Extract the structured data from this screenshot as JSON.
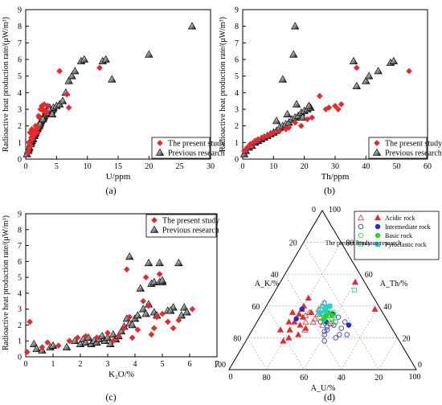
{
  "figure_labels": [
    "(a)",
    "(b)",
    "(c)",
    "(d)"
  ],
  "colors": {
    "present": "#e8282b",
    "previous": "#000000",
    "acidic": "#e8282b",
    "intermediate": "#1f2ad6",
    "basic": "#2bd12b",
    "pyroclastic": "#24cfd6"
  },
  "chart_data": [
    {
      "type": "scatter",
      "panel": "(a)",
      "xlabel": "U/ppm",
      "ylabel": "Radioactive heat production rate/(μW/m³)",
      "xlim": [
        0,
        30
      ],
      "ylim": [
        0,
        9
      ],
      "xticks": [
        "0",
        "5",
        "10",
        "15",
        "20",
        "25",
        "30"
      ],
      "yticks": [
        "0",
        "1",
        "2",
        "3",
        "4",
        "5",
        "6",
        "7",
        "8",
        "9"
      ],
      "legend": {
        "position": "bottom-right",
        "entries": [
          "The present study",
          "Previous research"
        ]
      },
      "series": [
        {
          "name": "The present study",
          "marker": "diamond",
          "color": "#e8282b",
          "x": [
            0.3,
            0.5,
            0.7,
            0.9,
            1.0,
            1.2,
            1.4,
            1.6,
            1.8,
            2.0,
            2.2,
            2.4,
            2.6,
            2.8,
            3.0,
            3.2,
            3.4,
            3.6,
            0.8,
            1.1,
            1.5,
            2.1,
            2.9,
            5.5,
            6.7,
            7.0,
            12.0,
            0.4,
            1.3
          ],
          "y": [
            0.4,
            1.0,
            1.6,
            1.3,
            1.8,
            1.5,
            1.7,
            2.0,
            1.6,
            1.9,
            2.5,
            3.0,
            3.2,
            3.0,
            3.3,
            2.9,
            2.8,
            3.2,
            0.8,
            1.2,
            1.7,
            2.6,
            2.9,
            5.3,
            3.9,
            3.1,
            5.5,
            0.5,
            1.4
          ]
        },
        {
          "name": "Previous research",
          "marker": "triangle",
          "color": "#000000",
          "x": [
            0.2,
            0.4,
            0.5,
            0.6,
            0.8,
            0.9,
            1.0,
            1.2,
            1.4,
            1.5,
            1.7,
            1.9,
            2.0,
            2.2,
            2.4,
            2.5,
            2.7,
            2.9,
            3.0,
            3.2,
            3.4,
            3.5,
            3.7,
            3.9,
            4.0,
            4.2,
            4.4,
            4.5,
            5.0,
            5.5,
            6.0,
            6.5,
            7.0,
            7.5,
            8.0,
            9.0,
            9.5,
            12.5,
            13.0,
            14.0,
            20.0,
            27.0,
            1.1,
            1.6,
            2.3,
            2.8,
            3.3,
            3.8,
            4.3
          ],
          "y": [
            0.3,
            0.5,
            0.6,
            0.7,
            0.9,
            1.0,
            1.1,
            1.2,
            1.4,
            1.5,
            1.7,
            1.8,
            1.9,
            2.0,
            2.2,
            2.3,
            2.4,
            2.5,
            2.6,
            2.7,
            2.8,
            2.9,
            3.0,
            3.1,
            2.8,
            2.9,
            3.0,
            3.1,
            3.2,
            3.3,
            3.5,
            4.0,
            4.7,
            5.0,
            5.3,
            5.9,
            6.0,
            5.9,
            6.0,
            4.8,
            6.3,
            8.0,
            1.3,
            1.6,
            2.1,
            2.4,
            2.9,
            3.0,
            2.7
          ]
        }
      ]
    },
    {
      "type": "scatter",
      "panel": "(b)",
      "xlabel": "Th/ppm",
      "ylabel": "Radioactive heat production rate/(μW/m³)",
      "xlim": [
        0,
        60
      ],
      "ylim": [
        0,
        9
      ],
      "xticks": [
        "0",
        "10",
        "20",
        "30",
        "40",
        "50",
        "60"
      ],
      "yticks": [
        "0",
        "1",
        "2",
        "3",
        "4",
        "5",
        "6",
        "7",
        "8",
        "9"
      ],
      "legend": {
        "position": "bottom-right",
        "entries": [
          "The present study",
          "Previous research"
        ]
      },
      "series": [
        {
          "name": "The present study",
          "marker": "diamond",
          "color": "#e8282b",
          "x": [
            0.5,
            1.5,
            2.5,
            3.5,
            5.0,
            6.5,
            8.0,
            10.0,
            12.0,
            14.0,
            15.0,
            17.0,
            19.0,
            21.0,
            22.5,
            25.0,
            27.0,
            28.0,
            30.0,
            31.0,
            32.0,
            37.0,
            54.0,
            4.0,
            9.0
          ],
          "y": [
            0.5,
            0.7,
            0.9,
            1.0,
            1.2,
            1.3,
            1.4,
            1.6,
            1.7,
            1.8,
            1.9,
            2.2,
            2.0,
            2.4,
            2.5,
            3.8,
            3.0,
            3.1,
            3.2,
            3.0,
            3.3,
            5.5,
            5.3,
            1.1,
            1.5
          ]
        },
        {
          "name": "Previous research",
          "marker": "triangle",
          "color": "#000000",
          "x": [
            0.5,
            1.0,
            2.0,
            3.0,
            4.0,
            5.0,
            6.0,
            7.0,
            8.0,
            9.0,
            10.0,
            11.0,
            12.0,
            13.0,
            14.0,
            15.0,
            16.0,
            17.0,
            18.0,
            19.0,
            20.0,
            21.0,
            22.0,
            13.0,
            16.5,
            17.0,
            17.5,
            36.0,
            37.0,
            40.0,
            41.0,
            44.0,
            48.0,
            49.0,
            11.0,
            14.5,
            19.5,
            21.5
          ],
          "y": [
            0.3,
            0.5,
            0.7,
            0.8,
            1.0,
            1.1,
            1.2,
            1.3,
            1.4,
            1.5,
            1.6,
            1.7,
            1.9,
            2.0,
            2.1,
            2.2,
            2.4,
            2.5,
            2.6,
            2.8,
            2.9,
            3.0,
            3.1,
            4.8,
            6.3,
            8.0,
            3.3,
            5.9,
            4.4,
            4.7,
            5.0,
            5.3,
            5.8,
            5.9,
            2.3,
            2.7,
            2.5,
            3.2
          ]
        }
      ]
    },
    {
      "type": "scatter",
      "panel": "(c)",
      "xlabel": "K₂O/%",
      "ylabel": "Radioactive heat production rate/(μW/m³)",
      "xlim": [
        0,
        7
      ],
      "ylim": [
        0,
        9
      ],
      "xticks": [
        "0",
        "1",
        "2",
        "3",
        "4",
        "5",
        "6",
        "7"
      ],
      "yticks": [
        "0",
        "1",
        "2",
        "3",
        "4",
        "5",
        "6",
        "7",
        "8",
        "9"
      ],
      "legend": {
        "position": "top-right",
        "entries": [
          "The present study",
          "Previous research"
        ]
      },
      "series": [
        {
          "name": "The present study",
          "marker": "diamond",
          "color": "#e8282b",
          "x": [
            0.05,
            0.15,
            0.6,
            0.8,
            1.2,
            1.6,
            1.9,
            2.2,
            2.6,
            3.0,
            3.2,
            3.4,
            3.6,
            3.7,
            3.9,
            4.1,
            4.3,
            4.5,
            4.6,
            4.7,
            4.8,
            4.9,
            5.0,
            5.2,
            5.4,
            5.6,
            6.1,
            3.8,
            4.4
          ],
          "y": [
            0.3,
            2.2,
            0.6,
            0.9,
            0.7,
            1.0,
            1.2,
            1.3,
            1.2,
            1.5,
            1.0,
            1.3,
            1.8,
            5.5,
            1.2,
            1.7,
            3.5,
            3.2,
            1.4,
            1.8,
            2.5,
            5.2,
            2.7,
            2.2,
            1.8,
            2.3,
            3.0,
            2.5,
            5.0
          ]
        },
        {
          "name": "Previous research",
          "marker": "triangle",
          "color": "#000000",
          "x": [
            0.3,
            0.4,
            0.6,
            0.9,
            1.0,
            1.5,
            1.8,
            2.0,
            2.1,
            2.2,
            2.3,
            2.4,
            2.5,
            2.6,
            2.7,
            2.8,
            2.9,
            3.0,
            3.1,
            3.2,
            3.3,
            3.4,
            3.5,
            3.6,
            3.7,
            3.8,
            3.9,
            4.0,
            4.1,
            4.2,
            4.3,
            4.4,
            4.5,
            4.6,
            4.7,
            4.8,
            4.9,
            5.0,
            5.2,
            5.4,
            5.6,
            5.7,
            5.8,
            5.9,
            4.5,
            4.9,
            5.0,
            5.3,
            4.7,
            3.8
          ],
          "y": [
            0.8,
            0.5,
            0.4,
            0.6,
            0.7,
            0.6,
            1.0,
            0.8,
            1.1,
            0.9,
            1.2,
            0.8,
            1.0,
            0.9,
            1.1,
            1.3,
            1.0,
            1.2,
            0.8,
            1.4,
            1.1,
            1.3,
            1.6,
            1.9,
            2.4,
            2.1,
            2.0,
            2.4,
            2.6,
            4.3,
            3.0,
            2.7,
            3.3,
            4.6,
            2.8,
            2.6,
            4.7,
            4.7,
            2.9,
            3.1,
            5.9,
            2.6,
            3.1,
            2.8,
            5.9,
            5.9,
            4.8,
            2.9,
            4.7,
            6.3
          ]
        }
      ]
    },
    {
      "type": "ternary",
      "panel": "(d)",
      "axes": {
        "left": "A_K/%",
        "right": "A_Th/%",
        "bottom": "A_U/%"
      },
      "corner_labels": [
        "0",
        "100",
        "100",
        "0",
        "0",
        "100"
      ],
      "ticks": [
        "20",
        "40",
        "60",
        "80"
      ],
      "legend": {
        "position": "top-right",
        "entries": [
          "Acidic rock",
          "Intermediate rock",
          "Basic rock",
          "Pyroclastic rock"
        ],
        "column_labels": [
          "The present study",
          "Previous research"
        ]
      },
      "series": [
        {
          "name": "Acidic rock",
          "group": "present",
          "marker": "open-triangle",
          "color": "#e8282b",
          "points": [
            [
              40,
              30,
              30
            ],
            [
              35,
              35,
              30
            ],
            [
              30,
              40,
              30
            ],
            [
              38,
              32,
              30
            ],
            [
              42,
              34,
              24
            ],
            [
              36,
              28,
              36
            ],
            [
              44,
              30,
              26
            ],
            [
              28,
              42,
              30
            ],
            [
              33,
              38,
              29
            ],
            [
              47,
              25,
              28
            ],
            [
              31,
              29,
              40
            ],
            [
              39,
              36,
              25
            ]
          ]
        },
        {
          "name": "Acidic rock",
          "group": "previous",
          "marker": "filled-triangle",
          "color": "#e8282b",
          "points": [
            [
              55,
              25,
              20
            ],
            [
              50,
              30,
              20
            ],
            [
              45,
              35,
              20
            ],
            [
              48,
              28,
              24
            ],
            [
              52,
              22,
              26
            ],
            [
              42,
              38,
              20
            ],
            [
              58,
              20,
              22
            ],
            [
              46,
              26,
              28
            ],
            [
              40,
              40,
              20
            ],
            [
              60,
              25,
              15
            ],
            [
              35,
              45,
              20
            ],
            [
              53,
              30,
              17
            ],
            [
              44,
              33,
              23
            ],
            [
              38,
              36,
              26
            ],
            [
              62,
              18,
              20
            ],
            [
              5,
              55,
              40
            ],
            [
              48,
              36,
              16
            ],
            [
              3,
              38,
              59
            ]
          ]
        },
        {
          "name": "Intermediate rock",
          "group": "present",
          "marker": "open-circle",
          "color": "#1f2ad6",
          "points": [
            [
              35,
              25,
              40
            ],
            [
              30,
              28,
              42
            ],
            [
              38,
              22,
              40
            ],
            [
              28,
              30,
              42
            ],
            [
              33,
              20,
              47
            ],
            [
              25,
              33,
              42
            ],
            [
              40,
              18,
              42
            ],
            [
              30,
              22,
              48
            ],
            [
              36,
              30,
              34
            ],
            [
              27,
              26,
              47
            ],
            [
              32,
              35,
              33
            ],
            [
              23,
              30,
              47
            ],
            [
              37,
              24,
              39
            ],
            [
              29,
              34,
              37
            ],
            [
              34,
              27,
              39
            ],
            [
              26,
              22,
              52
            ]
          ]
        },
        {
          "name": "Intermediate rock",
          "group": "previous",
          "marker": "filled-circle",
          "color": "#1f2ad6",
          "points": [
            [
              48,
              32,
              20
            ],
            [
              42,
              38,
              20
            ],
            [
              33,
              30,
              37
            ],
            [
              22,
              28,
              50
            ],
            [
              27,
              35,
              38
            ]
          ]
        },
        {
          "name": "Basic rock",
          "group": "present",
          "marker": "open-circle",
          "color": "#2bd12b",
          "points": [
            [
              30,
              35,
              35
            ],
            [
              32,
              33,
              35
            ],
            [
              28,
              37,
              35
            ],
            [
              34,
              31,
              35
            ],
            [
              31,
              36,
              33
            ],
            [
              29,
              32,
              39
            ],
            [
              33,
              35,
              32
            ],
            [
              27,
              34,
              39
            ],
            [
              35,
              33,
              32
            ],
            [
              30,
              30,
              40
            ],
            [
              26,
              36,
              38
            ],
            [
              32,
              38,
              30
            ],
            [
              28,
              30,
              42
            ],
            [
              34,
              29,
              37
            ]
          ]
        },
        {
          "name": "Basic rock",
          "group": "previous",
          "marker": "filled-circle",
          "color": "#2bd12b",
          "points": [
            [
              31,
              34,
              35
            ],
            [
              29,
              36,
              35
            ],
            [
              33,
              32,
              35
            ],
            [
              28,
              34,
              38
            ]
          ]
        },
        {
          "name": "Pyroclastic rock",
          "group": "present",
          "marker": "open-square",
          "color": "#24cfd6",
          "points": [
            [
              30,
              40,
              30
            ],
            [
              32,
              38,
              30
            ],
            [
              8,
              50,
              42
            ],
            [
              28,
              42,
              30
            ]
          ]
        },
        {
          "name": "Pyroclastic rock",
          "group": "previous",
          "marker": "filled-square",
          "color": "#24cfd6",
          "points": [
            [
              30,
              37,
              33
            ],
            [
              26,
              40,
              34
            ],
            [
              34,
              36,
              30
            ],
            [
              29,
              39,
              32
            ]
          ]
        }
      ]
    }
  ]
}
